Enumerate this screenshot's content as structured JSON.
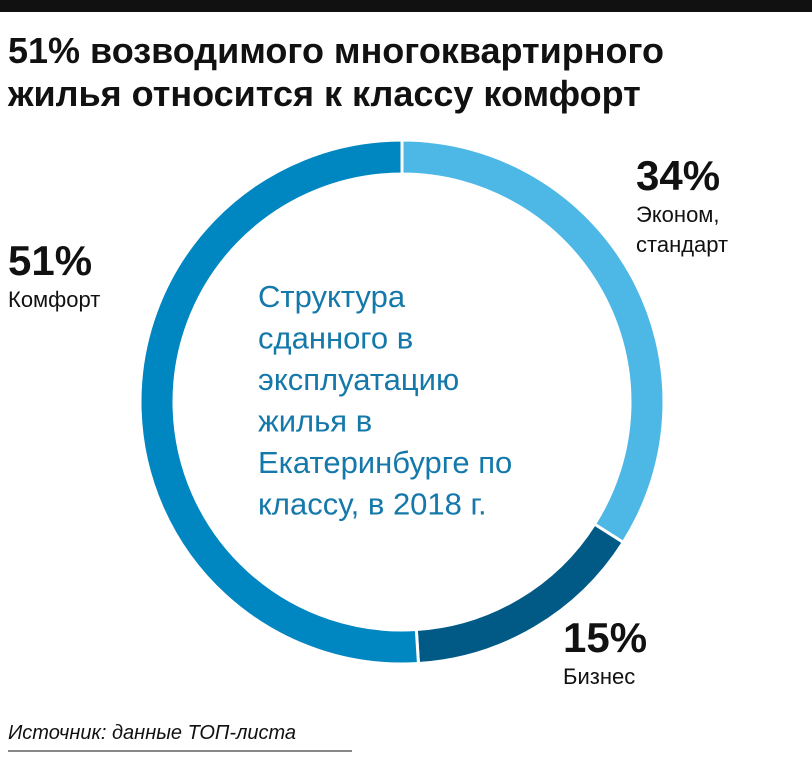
{
  "chart_data": {
    "type": "pie",
    "title": [
      "51% возводимого многоквартирного",
      "жилья относится к классу комфорт"
    ],
    "center_text": [
      "Структура",
      "сданного в",
      "эксплуатацию",
      "жилья в",
      "Екатеринбурге по",
      "классу, в 2018 г."
    ],
    "categories": [
      [
        "Эконом,",
        "стандарт"
      ],
      [
        "Бизнес"
      ],
      [
        "Комфорт"
      ]
    ],
    "values": [
      34,
      15,
      51
    ],
    "value_labels": [
      "34%",
      "15%",
      "51%"
    ],
    "colors": [
      "#4db8e6",
      "#005a85",
      "#0086c0"
    ],
    "donut": true,
    "source": "Источник: данные ТОП-листа"
  }
}
